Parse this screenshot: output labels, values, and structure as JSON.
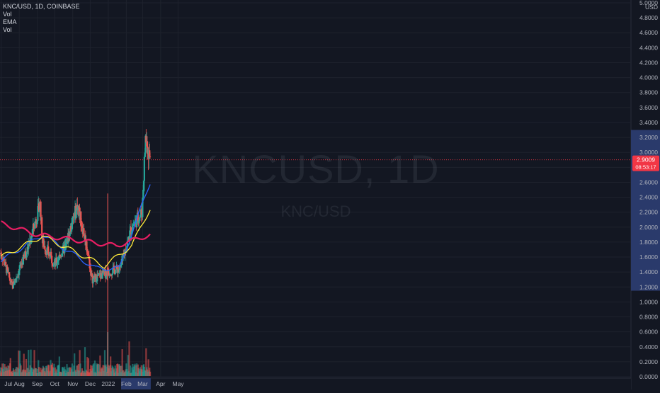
{
  "legend": {
    "symbol_line": "KNC/USD, 1D, COINBASE",
    "vol": "Vol",
    "ema": "EMA",
    "vol2": "Vol"
  },
  "watermark": {
    "main": "KNCUSD, 1D",
    "sub": "KNC/USD"
  },
  "price_label": {
    "value": "2.9009",
    "countdown": "08:53:17",
    "color": "#f23645"
  },
  "colors": {
    "background": "#131722",
    "up": "#26a69a",
    "down": "#ef5350",
    "ema_fast": "#2962ff",
    "ema_mid": "#ffeb3b",
    "ema_slow": "#e91e63",
    "axis_highlight": "#2a3a6b"
  },
  "chart_data": {
    "type": "candlestick",
    "title": "KNC/USD, 1D, COINBASE",
    "ylabel": "USD",
    "ylim": [
      0,
      5.0
    ],
    "y_ticks": [
      "5.0000",
      "4.8000",
      "4.6000",
      "4.4000",
      "4.2000",
      "4.0000",
      "3.8000",
      "3.6000",
      "3.4000",
      "3.2000",
      "3.0000",
      "2.8000",
      "2.6000",
      "2.4000",
      "2.2000",
      "2.0000",
      "1.8000",
      "1.6000",
      "1.4000",
      "1.2000",
      "1.0000",
      "0.8000",
      "0.6000",
      "0.4000",
      "0.2000",
      "0.0000"
    ],
    "x_ticks": [
      "Jul",
      "Aug",
      "Sep",
      "Oct",
      "Nov",
      "Dec",
      "2022",
      "Feb",
      "Mar",
      "Apr",
      "May"
    ],
    "last_price": 2.9009,
    "key_points": [
      {
        "date": "2021-07-01",
        "price": 1.65
      },
      {
        "date": "2021-07-20",
        "price": 1.2
      },
      {
        "date": "2021-08-15",
        "price": 1.7
      },
      {
        "date": "2021-09-06",
        "price": 2.3
      },
      {
        "date": "2021-09-10",
        "price": 1.8
      },
      {
        "date": "2021-10-01",
        "price": 1.5
      },
      {
        "date": "2021-10-20",
        "price": 1.75
      },
      {
        "date": "2021-11-09",
        "price": 2.3
      },
      {
        "date": "2021-11-25",
        "price": 1.75
      },
      {
        "date": "2021-12-04",
        "price": 1.3
      },
      {
        "date": "2021-12-31",
        "price": 1.4
      },
      {
        "date": "2022-01-22",
        "price": 1.45
      },
      {
        "date": "2022-02-10",
        "price": 2.0
      },
      {
        "date": "2022-02-28",
        "price": 2.2
      },
      {
        "date": "2022-03-06",
        "price": 3.2
      },
      {
        "date": "2022-03-14",
        "price": 2.9
      }
    ],
    "ema_series": [
      {
        "name": "EMA",
        "values": [
          {
            "date": "2021-07-01",
            "price": 1.55
          },
          {
            "date": "2021-09-10",
            "price": 1.9
          },
          {
            "date": "2021-12-10",
            "price": 1.45
          },
          {
            "date": "2022-01-20",
            "price": 1.45
          },
          {
            "date": "2022-03-14",
            "price": 2.6
          }
        ]
      },
      {
        "name": "EMA",
        "values": [
          {
            "date": "2021-07-01",
            "price": 1.6
          },
          {
            "date": "2021-09-10",
            "price": 1.88
          },
          {
            "date": "2021-12-25",
            "price": 1.48
          },
          {
            "date": "2022-02-10",
            "price": 1.75
          },
          {
            "date": "2022-03-14",
            "price": 2.25
          }
        ]
      },
      {
        "name": "EMA",
        "values": [
          {
            "date": "2021-07-01",
            "price": 2.05
          },
          {
            "date": "2021-09-01",
            "price": 1.9
          },
          {
            "date": "2021-12-01",
            "price": 1.8
          },
          {
            "date": "2022-01-15",
            "price": 1.75
          },
          {
            "date": "2022-03-14",
            "price": 1.9
          }
        ]
      }
    ],
    "volume_peak_date": "2021-12-31",
    "grid": true,
    "legend_position": "top-left"
  }
}
